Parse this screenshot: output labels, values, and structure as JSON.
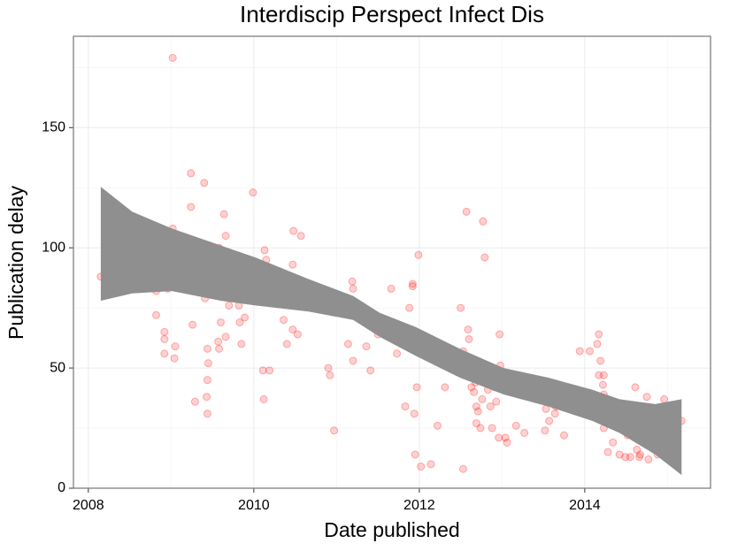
{
  "chart_data": {
    "type": "scatter",
    "title": "Interdiscip Perspect Infect Dis",
    "x_label": "Date published",
    "y_label": "Publication delay",
    "xlim": [
      2007.82,
      2015.52
    ],
    "xticks": [
      2008,
      2010,
      2012,
      2014
    ],
    "x_minor_ticks": [
      2009,
      2011,
      2013,
      2015
    ],
    "ylim": [
      0,
      188
    ],
    "yticks": [
      0,
      50,
      100,
      150
    ],
    "y_minor_ticks": [
      25,
      75,
      125,
      175
    ],
    "grid": true,
    "color": "#ff0000",
    "x": [
      2008.15,
      2008.82,
      2008.82,
      2008.82,
      2008.92,
      2008.92,
      2008.92,
      2008.96,
      2009.02,
      2009.02,
      2009.04,
      2009.05,
      2009.08,
      2009.1,
      2009.13,
      2009.24,
      2009.24,
      2009.26,
      2009.29,
      2009.4,
      2009.41,
      2009.43,
      2009.44,
      2009.44,
      2009.45,
      2009.44,
      2009.48,
      2009.57,
      2009.58,
      2009.58,
      2009.6,
      2009.62,
      2009.64,
      2009.66,
      2009.66,
      2009.7,
      2009.82,
      2009.83,
      2009.85,
      2009.89,
      2009.99,
      2010.01,
      2010.02,
      2010.11,
      2010.12,
      2010.13,
      2010.14,
      2010.15,
      2010.16,
      2010.19,
      2010.36,
      2010.41,
      2010.4,
      2010.47,
      2010.47,
      2010.48,
      2010.51,
      2010.53,
      2010.57,
      2010.9,
      2010.92,
      2010.97,
      2011.14,
      2011.19,
      2011.2,
      2011.2,
      2011.36,
      2011.4,
      2011.41,
      2011.5,
      2011.57,
      2011.66,
      2011.73,
      2011.73,
      2011.83,
      2011.88,
      2011.92,
      2011.92,
      2011.94,
      2011.97,
      2011.95,
      2011.99,
      2012.02,
      2012.14,
      2012.22,
      2012.31,
      2012.4,
      2012.44,
      2012.48,
      2012.5,
      2012.53,
      2012.53,
      2012.57,
      2012.59,
      2012.6,
      2012.63,
      2012.66,
      2012.66,
      2012.68,
      2012.69,
      2012.69,
      2012.71,
      2012.74,
      2012.76,
      2012.77,
      2012.79,
      2012.83,
      2012.86,
      2012.88,
      2012.91,
      2012.93,
      2012.96,
      2012.98,
      2012.97,
      2013.04,
      2013.06,
      2013.17,
      2013.27,
      2013.53,
      2013.52,
      2013.57,
      2013.64,
      2013.65,
      2013.7,
      2013.75,
      2013.94,
      2014.0,
      2014.06,
      2014.15,
      2014.17,
      2014.19,
      2014.17,
      2014.23,
      2014.22,
      2014.23,
      2014.23,
      2014.28,
      2014.34,
      2014.42,
      2014.46,
      2014.49,
      2014.52,
      2014.55,
      2014.6,
      2014.61,
      2014.63,
      2014.61,
      2014.66,
      2014.67,
      2014.71,
      2014.75,
      2014.77,
      2014.8,
      2014.84,
      2014.85,
      2014.88,
      2014.92,
      2014.96,
      2015.17
    ],
    "values": [
      88,
      102.6,
      82,
      72,
      65,
      62,
      56,
      83,
      179,
      108,
      54,
      59,
      92,
      100,
      102,
      131,
      117,
      68,
      36,
      127,
      79,
      38,
      58,
      45,
      52,
      31,
      87,
      61,
      58,
      100,
      69,
      82,
      114,
      105,
      63,
      76,
      76,
      69,
      60,
      71,
      123,
      85,
      83,
      49,
      37,
      99,
      88,
      95,
      79,
      49,
      70,
      82,
      60,
      93,
      66,
      107,
      85,
      64,
      105,
      50,
      47,
      24,
      60,
      86,
      83,
      53,
      59,
      72,
      49,
      64,
      68,
      83,
      56,
      61,
      34,
      75,
      85,
      84,
      31,
      42,
      14,
      97,
      9,
      10,
      26,
      42,
      51,
      50,
      56,
      75,
      57,
      8,
      115,
      66,
      62,
      42,
      50,
      40,
      44,
      34,
      27,
      32,
      25,
      37,
      111,
      96,
      41,
      34,
      25,
      42,
      36,
      21,
      51,
      64,
      21,
      19,
      26,
      23,
      33,
      24,
      28,
      31,
      34,
      37,
      22,
      57,
      33,
      57,
      60,
      64,
      53,
      47,
      47,
      43,
      39,
      25,
      15,
      19,
      14,
      34,
      13,
      22,
      13,
      23,
      21,
      16,
      42,
      13,
      14,
      21,
      38,
      12,
      28,
      16,
      28,
      14,
      23,
      37,
      28
    ],
    "smooth": {
      "color": "#8f8f8f",
      "x": [
        2008.15,
        2008.53,
        2009.01,
        2009.6,
        2010.02,
        2010.66,
        2011.2,
        2011.52,
        2011.96,
        2012.49,
        2013.02,
        2013.56,
        2014.09,
        2014.42,
        2014.85,
        2015.17
      ],
      "upper": [
        125.4,
        115,
        108,
        101,
        96,
        87,
        80,
        73,
        67,
        58,
        50,
        46,
        41,
        37,
        35,
        37
      ],
      "lower": [
        78,
        81,
        82,
        78,
        76,
        73.5,
        70,
        63,
        55,
        46,
        39,
        34,
        28,
        23,
        14,
        5.5
      ]
    }
  }
}
